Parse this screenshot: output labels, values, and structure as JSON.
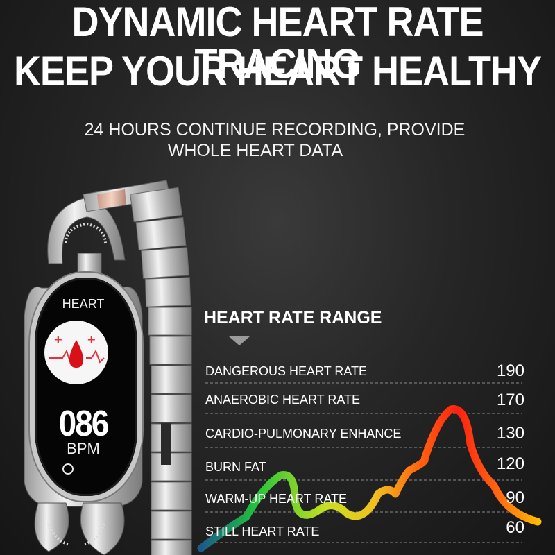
{
  "headline": {
    "line1": "DYNAMIC HEART RATE TRACING",
    "line2": "KEEP YOUR HEART HEALTHY"
  },
  "subheadline": {
    "line1": "24 HOURS CONTINUE RECORDING, PROVIDE",
    "line2": "WHOLE HEART DATA"
  },
  "watch": {
    "screen_label": "HEART",
    "icon": "heart-blood-drop-icon",
    "bpm_value": "086",
    "bpm_unit": "BPM"
  },
  "range": {
    "title": "HEART RATE RANGE",
    "zones": [
      {
        "label": "DANGEROUS HEART RATE",
        "value": "190"
      },
      {
        "label": "ANAEROBIC HEART RATE",
        "value": "170"
      },
      {
        "label": "CARDIO-PULMONARY ENHANCE",
        "value": "130"
      },
      {
        "label": "BURN FAT",
        "value": "120"
      },
      {
        "label": "WARM-UP HEART RATE",
        "value": "90"
      },
      {
        "label": "STILL HEART RATE",
        "value": "60"
      }
    ]
  },
  "colors": {
    "background": "#222222",
    "curve_gradient": [
      "#1a5a8a",
      "#22c43a",
      "#c8e020",
      "#f0c020",
      "#ff6a10",
      "#ff2010",
      "#ff6a10",
      "#ffd000"
    ]
  }
}
